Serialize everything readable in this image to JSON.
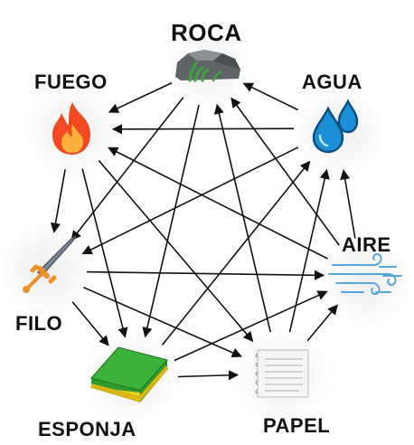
{
  "nodes": {
    "roca": {
      "label": "ROCA",
      "icon": "rock-icon"
    },
    "agua": {
      "label": "AGUA",
      "icon": "water-drops-icon"
    },
    "aire": {
      "label": "AIRE",
      "icon": "wind-icon"
    },
    "papel": {
      "label": "PAPEL",
      "icon": "paper-icon"
    },
    "esponja": {
      "label": "ESPONJA",
      "icon": "sponge-icon"
    },
    "filo": {
      "label": "FILO",
      "icon": "sword-icon"
    },
    "fuego": {
      "label": "FUEGO",
      "icon": "fire-icon"
    }
  },
  "edges": [
    [
      "roca",
      "fuego"
    ],
    [
      "roca",
      "filo"
    ],
    [
      "roca",
      "esponja"
    ],
    [
      "agua",
      "roca"
    ],
    [
      "agua",
      "fuego"
    ],
    [
      "agua",
      "filo"
    ],
    [
      "aire",
      "agua"
    ],
    [
      "aire",
      "roca"
    ],
    [
      "aire",
      "fuego"
    ],
    [
      "papel",
      "aire"
    ],
    [
      "papel",
      "agua"
    ],
    [
      "papel",
      "roca"
    ],
    [
      "esponja",
      "papel"
    ],
    [
      "esponja",
      "aire"
    ],
    [
      "esponja",
      "agua"
    ],
    [
      "filo",
      "esponja"
    ],
    [
      "filo",
      "papel"
    ],
    [
      "filo",
      "aire"
    ],
    [
      "fuego",
      "filo"
    ],
    [
      "fuego",
      "esponja"
    ],
    [
      "fuego",
      "papel"
    ]
  ],
  "colors": {
    "arrow": "#111111",
    "fire": "#f04a23",
    "water": "#1c8fd6",
    "sponge_green": "#2e9a2f",
    "sponge_yellow": "#f4d21a",
    "sword": "#7d8a99",
    "hilt": "#f0902a"
  }
}
